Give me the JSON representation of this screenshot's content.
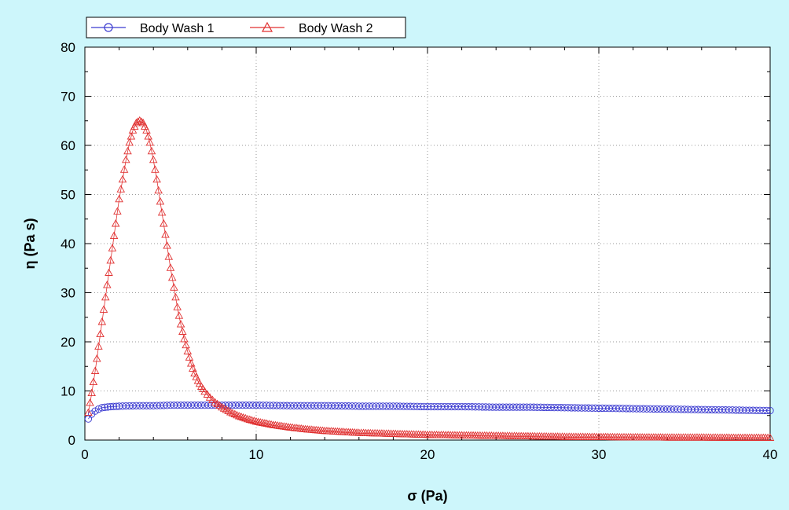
{
  "chart_data": {
    "type": "scatter",
    "title": "",
    "xlabel": "σ (Pa)",
    "ylabel": "η (Pa s)",
    "xlim": [
      0,
      40
    ],
    "ylim": [
      0,
      80
    ],
    "xticks": [
      0,
      10,
      20,
      30,
      40
    ],
    "yticks": [
      0,
      10,
      20,
      30,
      40,
      50,
      60,
      70,
      80
    ],
    "grid": true,
    "legend_position": "top-left",
    "background_color": "#cdf6fb",
    "plot_background_color": "#ffffff",
    "series": [
      {
        "name": "Body Wash 1",
        "marker": "circle",
        "color": "#3a3ad0",
        "x": [
          0.2,
          0.4,
          0.6,
          0.8,
          1.0,
          1.5,
          2,
          3,
          4,
          5,
          6,
          7,
          8,
          9,
          10,
          12,
          14,
          16,
          18,
          20,
          22,
          24,
          26,
          28,
          30,
          32,
          34,
          36,
          38,
          40
        ],
        "y": [
          4.3,
          5.3,
          5.9,
          6.3,
          6.6,
          6.8,
          6.9,
          7.0,
          7.0,
          7.1,
          7.1,
          7.1,
          7.1,
          7.1,
          7.1,
          7.0,
          7.0,
          6.9,
          6.9,
          6.8,
          6.8,
          6.7,
          6.7,
          6.6,
          6.5,
          6.4,
          6.3,
          6.2,
          6.1,
          6.0
        ]
      },
      {
        "name": "Body Wash 2",
        "marker": "triangle",
        "color": "#e03030",
        "x": [
          0.2,
          0.4,
          0.6,
          0.8,
          1.0,
          1.2,
          1.4,
          1.6,
          1.8,
          2.0,
          2.2,
          2.4,
          2.6,
          2.8,
          3.0,
          3.2,
          3.4,
          3.6,
          3.8,
          4.0,
          4.2,
          4.4,
          4.6,
          4.8,
          5.0,
          5.2,
          5.4,
          5.6,
          5.8,
          6.0,
          6.2,
          6.4,
          6.6,
          6.8,
          7.0,
          7.3,
          7.6,
          8.0,
          8.5,
          9.0,
          9.5,
          10,
          11,
          12,
          13,
          14,
          15,
          16,
          18,
          20,
          22,
          24,
          26,
          28,
          30,
          32,
          34,
          36,
          38,
          40
        ],
        "y": [
          5.5,
          9.5,
          14,
          19,
          24,
          29,
          34,
          39,
          44,
          49,
          53,
          57,
          60.5,
          63,
          64.5,
          65,
          64.5,
          63,
          60.5,
          57,
          53,
          48.5,
          44,
          39.5,
          35,
          31,
          27,
          23.5,
          20.5,
          18,
          15.5,
          13.5,
          12,
          10.8,
          9.8,
          8.6,
          7.6,
          6.6,
          5.6,
          4.8,
          4.2,
          3.7,
          3.0,
          2.5,
          2.1,
          1.8,
          1.6,
          1.4,
          1.2,
          1.0,
          0.9,
          0.8,
          0.7,
          0.6,
          0.55,
          0.5,
          0.45,
          0.45,
          0.4,
          0.4
        ]
      }
    ]
  }
}
